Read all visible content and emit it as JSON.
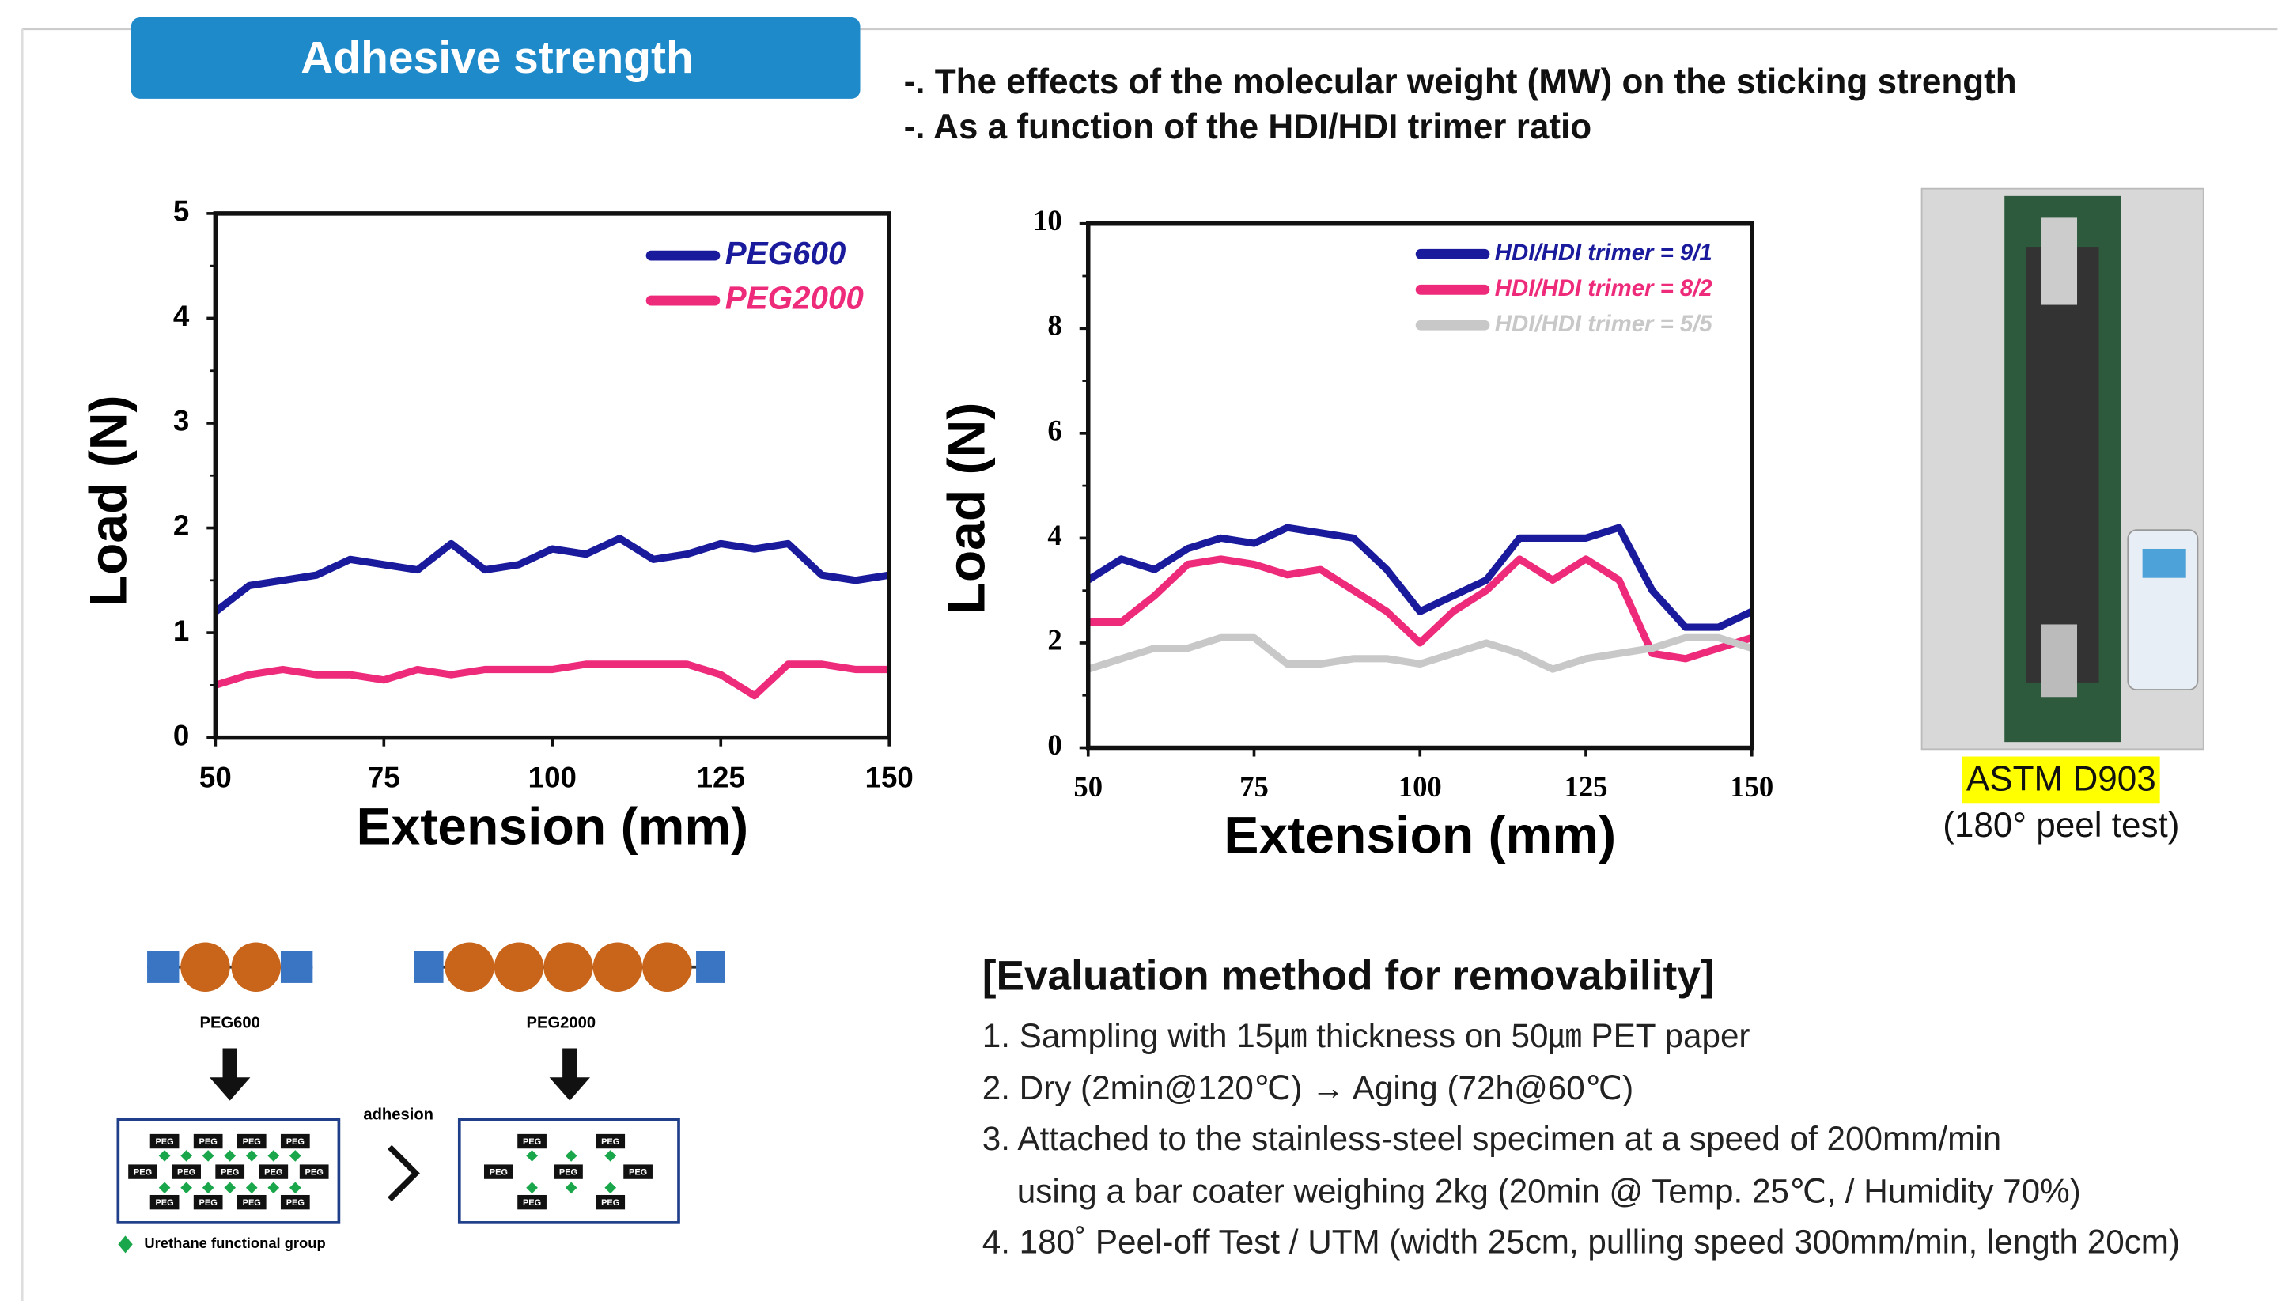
{
  "header": {
    "title": "Adhesive strength"
  },
  "bullets": [
    "-. The effects of the molecular weight (MW) on the sticking strength",
    "-. As a function of the HDI/HDI trimer ratio"
  ],
  "chart_data": [
    {
      "type": "line",
      "x_label": "Extension (mm)",
      "y_label": "Load (N)",
      "x": [
        50,
        55,
        60,
        65,
        70,
        75,
        80,
        85,
        90,
        95,
        100,
        105,
        110,
        115,
        120,
        125,
        130,
        135,
        140,
        145,
        150
      ],
      "xlim": [
        50,
        150
      ],
      "xticks": [
        50,
        75,
        100,
        125,
        150
      ],
      "ylim": [
        0,
        5
      ],
      "yticks": [
        0,
        1,
        2,
        3,
        4,
        5
      ],
      "legend": "upper right",
      "series": [
        {
          "name": "PEG600",
          "color": "#1a1a9c",
          "values": [
            1.2,
            1.45,
            1.5,
            1.55,
            1.7,
            1.65,
            1.6,
            1.85,
            1.6,
            1.65,
            1.8,
            1.75,
            1.9,
            1.7,
            1.75,
            1.85,
            1.8,
            1.85,
            1.55,
            1.5,
            1.55
          ]
        },
        {
          "name": "PEG2000",
          "color": "#ee2a7b",
          "values": [
            0.5,
            0.6,
            0.65,
            0.6,
            0.6,
            0.55,
            0.65,
            0.6,
            0.65,
            0.65,
            0.65,
            0.7,
            0.7,
            0.7,
            0.7,
            0.6,
            0.4,
            0.7,
            0.7,
            0.65,
            0.65
          ]
        }
      ]
    },
    {
      "type": "line",
      "x_label": "Extension (mm)",
      "y_label": "Load (N)",
      "x": [
        50,
        55,
        60,
        65,
        70,
        75,
        80,
        85,
        90,
        95,
        100,
        105,
        110,
        115,
        120,
        125,
        130,
        135,
        140,
        145,
        150
      ],
      "xlim": [
        50,
        150
      ],
      "xticks": [
        50,
        75,
        100,
        125,
        150
      ],
      "ylim": [
        0,
        10
      ],
      "yticks": [
        0,
        2,
        4,
        6,
        8,
        10
      ],
      "legend": "upper right",
      "series": [
        {
          "name": "HDI/HDI trimer = 9/1",
          "color": "#1a1a9c",
          "values": [
            3.2,
            3.6,
            3.4,
            3.8,
            4.0,
            3.9,
            4.2,
            4.1,
            4.0,
            3.4,
            2.6,
            2.9,
            3.2,
            4.0,
            4.0,
            4.0,
            4.2,
            3.0,
            2.3,
            2.3,
            2.6
          ]
        },
        {
          "name": "HDI/HDI trimer = 8/2",
          "color": "#ee2a7b",
          "values": [
            2.4,
            2.4,
            2.9,
            3.5,
            3.6,
            3.5,
            3.3,
            3.4,
            3.0,
            2.6,
            2.0,
            2.6,
            3.0,
            3.6,
            3.2,
            3.6,
            3.2,
            1.8,
            1.7,
            1.9,
            2.1
          ]
        },
        {
          "name": "HDI/HDI trimer = 5/5",
          "color": "#c8c8c8",
          "values": [
            1.5,
            1.7,
            1.9,
            1.9,
            2.1,
            2.1,
            1.6,
            1.6,
            1.7,
            1.7,
            1.6,
            1.8,
            2.0,
            1.8,
            1.5,
            1.7,
            1.8,
            1.9,
            2.1,
            2.1,
            1.9
          ]
        }
      ]
    }
  ],
  "photo": {
    "label": "ASTM D903",
    "caption": "(180° peel test)"
  },
  "diagram": {
    "chain_labels": [
      "PEG600",
      "PEG2000"
    ],
    "arrow_label": "adhesion",
    "box_label": "PEG",
    "legend": "Urethane functional group"
  },
  "method": {
    "title": "[Evaluation method for removability]",
    "lines": [
      "1. Sampling with 15㎛ thickness on 50㎛ PET paper",
      "2. Dry (2min@120℃) → Aging (72h@60℃)",
      "3. Attached to the stainless-steel specimen at a speed of 200mm/min",
      "using a bar coater weighing 2kg (20min @ Temp. 25℃, / Humidity 70%)",
      "4. 180˚ Peel-off Test / UTM (width 25cm, pulling speed 300mm/min, length 20cm)"
    ]
  }
}
